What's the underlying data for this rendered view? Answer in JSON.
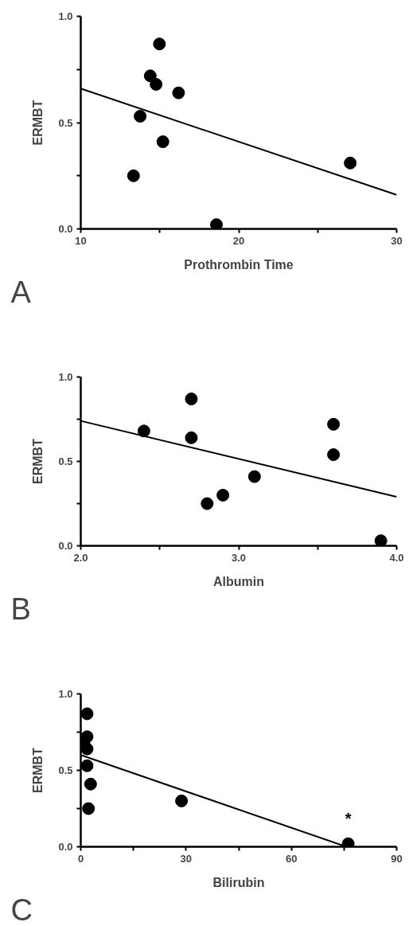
{
  "chart_data": [
    {
      "type": "scatter",
      "xlabel": "Prothrombin Time",
      "ylabel": "ERMBT",
      "xlim": [
        10,
        30
      ],
      "ylim": [
        0,
        1.0
      ],
      "xticks": [
        10,
        {
          "value": 15,
          "label": null
        },
        20,
        {
          "value": 25,
          "label": null
        },
        30
      ],
      "yticks": [
        {
          "value": 0,
          "label": "0.0"
        },
        {
          "value": 0.25,
          "label": null
        },
        {
          "value": 0.5,
          "label": "0.5"
        },
        {
          "value": 0.75,
          "label": null
        },
        {
          "value": 1.0,
          "label": "1.0"
        }
      ],
      "grid": false,
      "annotations": [
        "A"
      ],
      "series": [
        {
          "marker": "circle",
          "color": "#000000",
          "x": [
            14.98,
            14.4,
            14.77,
            16.19,
            13.76,
            15.2,
            13.34,
            18.59,
            27.06
          ],
          "values": [
            0.87,
            0.72,
            0.68,
            0.64,
            0.53,
            0.41,
            0.25,
            0.02,
            0.31
          ]
        },
        {
          "type": "line",
          "color": "#000000",
          "x": [
            10,
            30
          ],
          "values": [
            0.66,
            0.16
          ]
        }
      ]
    },
    {
      "type": "scatter",
      "xlabel": "Albumin",
      "ylabel": "ERMBT",
      "xlim": [
        2.0,
        4.0
      ],
      "ylim": [
        0,
        1.0
      ],
      "xticks": [
        {
          "value": 2,
          "label": "2.0"
        },
        {
          "value": 2.5,
          "label": null
        },
        {
          "value": 3,
          "label": "3.0"
        },
        {
          "value": 3.5,
          "label": null
        },
        {
          "value": 4,
          "label": "4.0"
        }
      ],
      "yticks": [
        {
          "value": 0,
          "label": "0.0"
        },
        {
          "value": 0.25,
          "label": null
        },
        {
          "value": 0.5,
          "label": "0.5"
        },
        {
          "value": 0.75,
          "label": null
        },
        {
          "value": 1.0,
          "label": "1.0"
        }
      ],
      "grid": false,
      "annotations": [
        "B"
      ],
      "series": [
        {
          "marker": "circle",
          "color": "#000000",
          "x": [
            2.7,
            2.4,
            2.7,
            3.6,
            3.6,
            3.1,
            2.9,
            2.8,
            3.9
          ],
          "values": [
            0.87,
            0.68,
            0.64,
            0.72,
            0.54,
            0.41,
            0.3,
            0.25,
            0.03
          ]
        },
        {
          "type": "line",
          "color": "#000000",
          "x": [
            2.0,
            4.0
          ],
          "values": [
            0.74,
            0.29
          ]
        }
      ]
    },
    {
      "type": "scatter",
      "xlabel": "Bilirubin",
      "ylabel": "ERMBT",
      "xlim": [
        0,
        90
      ],
      "ylim": [
        0,
        1.0
      ],
      "xticks": [
        0,
        {
          "value": 15,
          "label": null
        },
        30,
        {
          "value": 45,
          "label": null
        },
        60,
        {
          "value": 75,
          "label": null
        },
        90
      ],
      "yticks": [
        {
          "value": 0,
          "label": "0.0"
        },
        {
          "value": 0.25,
          "label": null
        },
        {
          "value": 0.5,
          "label": "0.5"
        },
        {
          "value": 0.75,
          "label": null
        },
        {
          "value": 1.0,
          "label": "1.0"
        }
      ],
      "grid": false,
      "annotations": [
        "C",
        {
          "text": "*",
          "x": 76.2,
          "y": 0.02
        }
      ],
      "series": [
        {
          "marker": "circle",
          "color": "#000000",
          "x": [
            1.8,
            1.8,
            0.9,
            1.8,
            1.8,
            2.8,
            2.2,
            28.7,
            76.2
          ],
          "values": [
            0.87,
            0.72,
            0.68,
            0.64,
            0.53,
            0.41,
            0.25,
            0.3,
            0.02
          ]
        },
        {
          "type": "line",
          "color": "#000000",
          "x": [
            0,
            75.7
          ],
          "values": [
            0.6,
            0.0
          ]
        }
      ]
    }
  ]
}
